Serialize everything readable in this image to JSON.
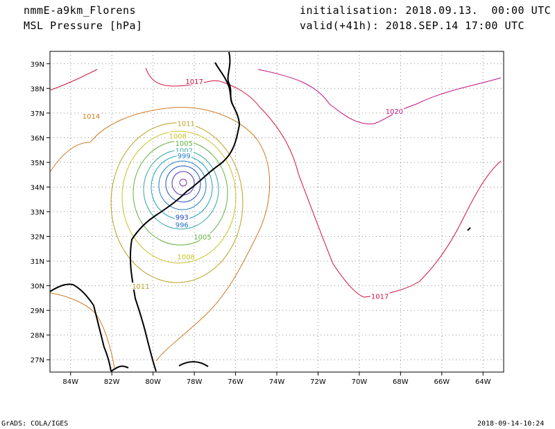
{
  "header": {
    "model": "nmmE-a9km_Florens",
    "variable": "MSL Pressure [hPa]",
    "init": "initialisation: 2018.09.13.  00:00 UTC",
    "valid": "valid(+41h): 2018.SEP.14 17:00 UTC"
  },
  "footer": {
    "credit": "GrADS: COLA/IGES",
    "timestamp": "2018-09-14-10:24"
  },
  "map": {
    "lon_range": [
      -85,
      -63
    ],
    "lat_range": [
      26.5,
      39.5
    ],
    "lon_ticks": [
      "84W",
      "82W",
      "80W",
      "78W",
      "76W",
      "74W",
      "72W",
      "70W",
      "68W",
      "66W",
      "64W"
    ],
    "lat_ticks": [
      "27N",
      "28N",
      "29N",
      "30N",
      "31N",
      "32N",
      "33N",
      "34N",
      "35N",
      "36N",
      "37N",
      "38N",
      "39N"
    ],
    "gridlines": true,
    "storm_center": {
      "lon": -78.6,
      "lat": 34.2
    },
    "contour_labels": [
      {
        "text": "1017",
        "lon": -78.0,
        "lat": 38.2,
        "color": "#d0103c"
      },
      {
        "text": "1020",
        "lon": -68.3,
        "lat": 37.0,
        "color": "#c01080"
      },
      {
        "text": "1017",
        "lon": -69.0,
        "lat": 29.5,
        "color": "#d0103c"
      },
      {
        "text": "1014",
        "lon": -83.0,
        "lat": 36.8,
        "color": "#d07820"
      },
      {
        "text": "1011",
        "lon": -78.4,
        "lat": 36.5,
        "color": "#b8a020"
      },
      {
        "text": "1008",
        "lon": -78.8,
        "lat": 36.0,
        "color": "#c8c020"
      },
      {
        "text": "1005",
        "lon": -78.5,
        "lat": 35.7,
        "color": "#60b040"
      },
      {
        "text": "1002",
        "lon": -78.5,
        "lat": 35.4,
        "color": "#30a8a0"
      },
      {
        "text": "999",
        "lon": -78.5,
        "lat": 35.2,
        "color": "#2080c0"
      },
      {
        "text": "993",
        "lon": -78.6,
        "lat": 32.7,
        "color": "#2040c0"
      },
      {
        "text": "996",
        "lon": -78.6,
        "lat": 32.4,
        "color": "#2070c0"
      },
      {
        "text": "1005",
        "lon": -77.6,
        "lat": 31.9,
        "color": "#60b040"
      },
      {
        "text": "1008",
        "lon": -78.4,
        "lat": 31.1,
        "color": "#c8c020"
      },
      {
        "text": "1011",
        "lon": -80.6,
        "lat": 29.9,
        "color": "#b8a020"
      }
    ]
  }
}
